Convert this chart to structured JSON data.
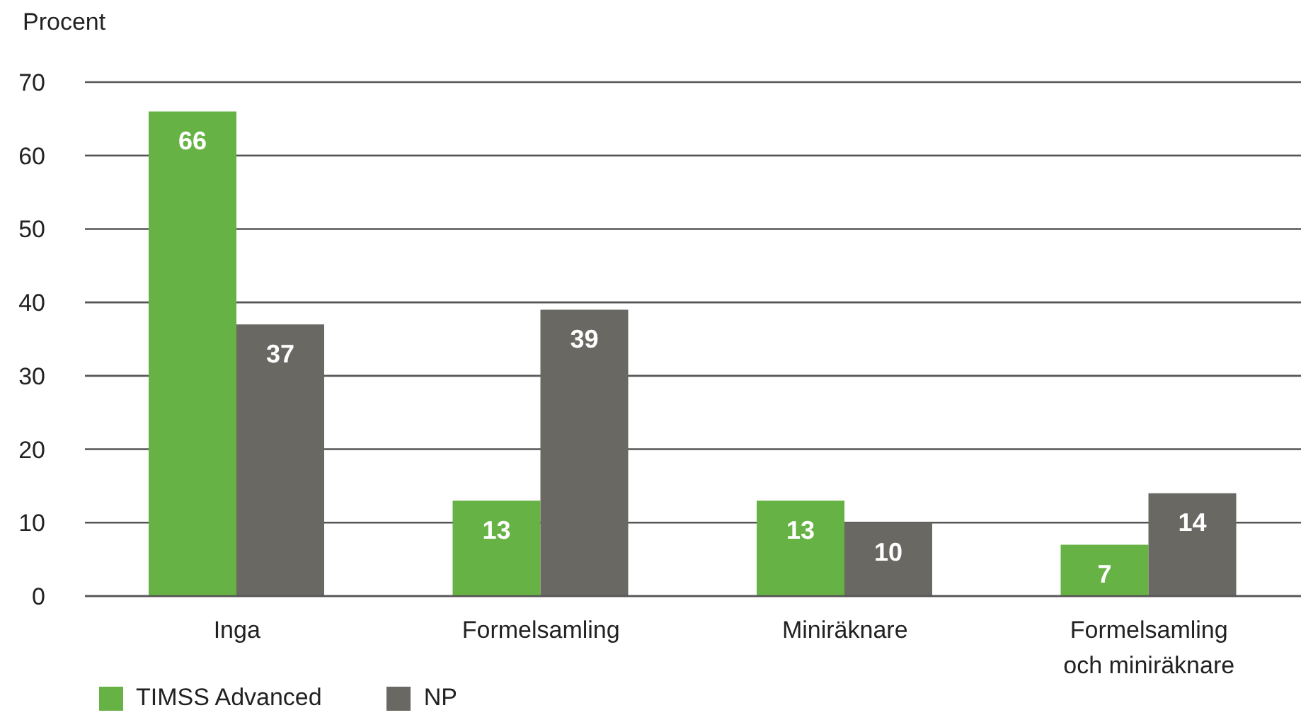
{
  "chart_data": {
    "type": "bar",
    "ylabel": "Procent",
    "categories": [
      "Inga",
      "Formelsamling",
      "Miniräknare",
      "Formelsamling och miniräknare"
    ],
    "series": [
      {
        "name": "TIMSS Advanced",
        "color": "#66b245",
        "values": [
          66,
          13,
          13,
          7
        ]
      },
      {
        "name": "NP",
        "color": "#6a6863",
        "values": [
          37,
          39,
          10,
          14
        ]
      }
    ],
    "ylim": [
      0,
      70
    ],
    "yticks": [
      0,
      10,
      20,
      30,
      40,
      50,
      60,
      70
    ],
    "grid": "y",
    "legend": "bottom left",
    "data_labels": true
  }
}
